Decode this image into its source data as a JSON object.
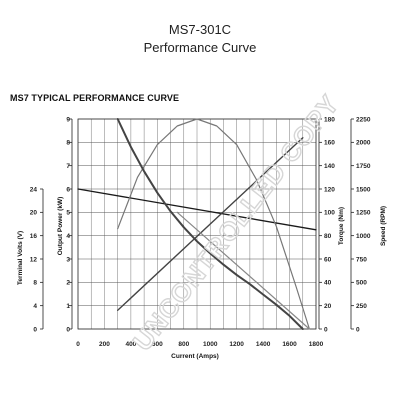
{
  "header": {
    "model": "MS7-301C",
    "subtitle": "Performance Curve",
    "chart_heading": "MS7 TYPICAL PERFORMANCE CURVE"
  },
  "watermark": "UNCONTROLLED COPY",
  "colors": {
    "grid": "#555555",
    "volts_line": "#1a1a1a",
    "power_line": "#777777",
    "torque_line": "#444444",
    "speed_line": "#444444",
    "secondary_line": "#888888"
  },
  "chart_data": {
    "type": "line",
    "title": "MS7 TYPICAL PERFORMANCE CURVE",
    "xlabel": "Current (Amps)",
    "xlim": [
      0,
      1800
    ],
    "x_ticks": [
      "0",
      "200",
      "400",
      "600",
      "800",
      "1000",
      "1200",
      "1400",
      "1600",
      "1800"
    ],
    "axes": {
      "terminal_volts": {
        "label": "Terminal Volts (V)",
        "range": [
          0,
          24
        ],
        "ticks": [
          "0",
          "4",
          "8",
          "12",
          "16",
          "20",
          "24"
        ],
        "side": "left-outer"
      },
      "output_power": {
        "label": "Output Power (kW)",
        "range": [
          0,
          9
        ],
        "ticks": [
          "0",
          "1",
          "2",
          "3",
          "4",
          "5",
          "6",
          "7",
          "8",
          "9"
        ],
        "side": "left-inner"
      },
      "torque": {
        "label": "Torque (Nm)",
        "range": [
          0,
          180
        ],
        "ticks": [
          "0",
          "20",
          "40",
          "60",
          "80",
          "100",
          "120",
          "140",
          "160",
          "180"
        ],
        "side": "right-inner"
      },
      "speed": {
        "label": "Speed (RPM)",
        "range": [
          0,
          2250
        ],
        "ticks": [
          "0",
          "250",
          "500",
          "750",
          "1000",
          "1250",
          "1500",
          "1750",
          "2000",
          "2250"
        ],
        "side": "right-outer"
      }
    },
    "grid": true,
    "series": [
      {
        "axis": "terminal_volts",
        "x": [
          0,
          1800
        ],
        "values": [
          24,
          17
        ]
      },
      {
        "axis": "output_power",
        "x": [
          300,
          450,
          600,
          750,
          900,
          1050,
          1200,
          1350,
          1500,
          1650,
          1750
        ],
        "values": [
          4.3,
          6.5,
          7.9,
          8.7,
          9.0,
          8.7,
          7.9,
          6.4,
          4.4,
          1.8,
          0
        ]
      },
      {
        "axis": "torque",
        "x": [
          300,
          1700
        ],
        "values": [
          16,
          164
        ]
      },
      {
        "axis": "speed",
        "x": [
          300,
          400,
          500,
          600,
          700,
          800,
          900,
          1000,
          1100,
          1200,
          1300,
          1400,
          1500,
          1600,
          1700
        ],
        "values": [
          2250,
          1950,
          1690,
          1460,
          1260,
          1090,
          940,
          810,
          690,
          580,
          480,
          370,
          260,
          140,
          0
        ]
      },
      {
        "axis": "speed",
        "x": [
          750,
          1750
        ],
        "values": [
          1250,
          0
        ]
      }
    ]
  }
}
